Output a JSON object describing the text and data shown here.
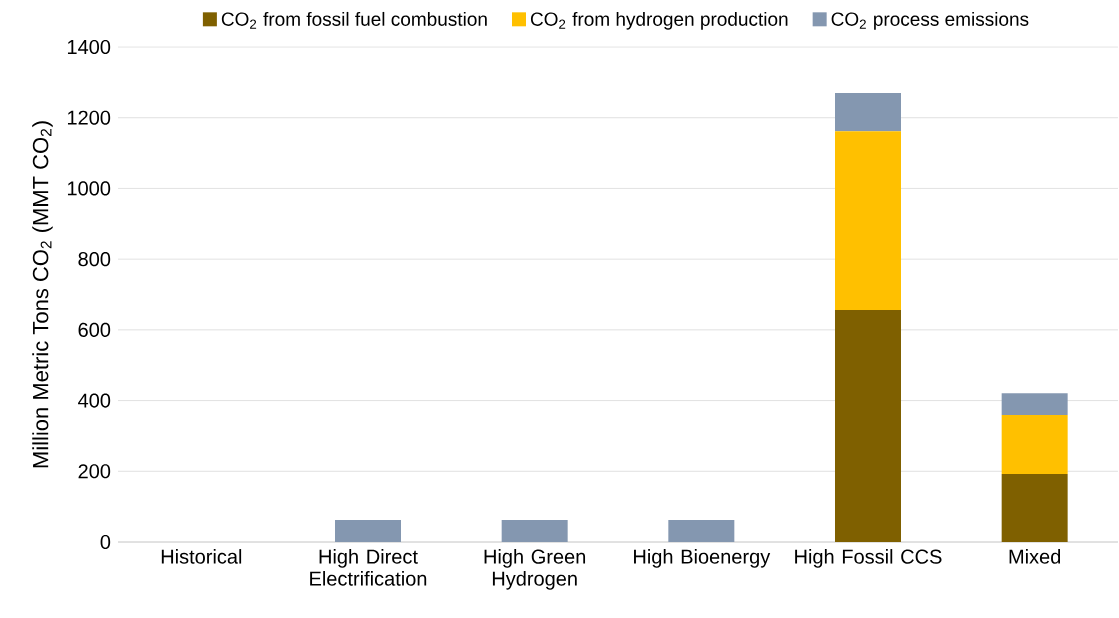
{
  "chart_data": {
    "type": "bar",
    "stacked": true,
    "ylabel": "Million Metric Tons CO$_{2}$ (MMT CO$_{2}$)",
    "categories": [
      "Historical",
      "High Direct Electrification",
      "High Green Hydrogen",
      "High Bioenergy",
      "High Fossil CCS",
      "Mixed"
    ],
    "series": [
      {
        "name": "CO$_{2}$ from fossil fuel combustion",
        "color": "#7f6000",
        "values": [
          0,
          0,
          0,
          0,
          656,
          192
        ]
      },
      {
        "name": "CO$_{2}$ from hydrogen production",
        "color": "#ffc000",
        "values": [
          0,
          0,
          0,
          0,
          506,
          167
        ]
      },
      {
        "name": "CO$_{2}$ process emissions",
        "color": "#8497b0",
        "values": [
          0,
          62,
          62,
          62,
          108,
          62
        ]
      }
    ],
    "ylim": [
      0,
      1400
    ],
    "yticks": [
      0,
      200,
      400,
      600,
      800,
      1000,
      1200,
      1400
    ],
    "grid": "y",
    "legend": "top"
  }
}
